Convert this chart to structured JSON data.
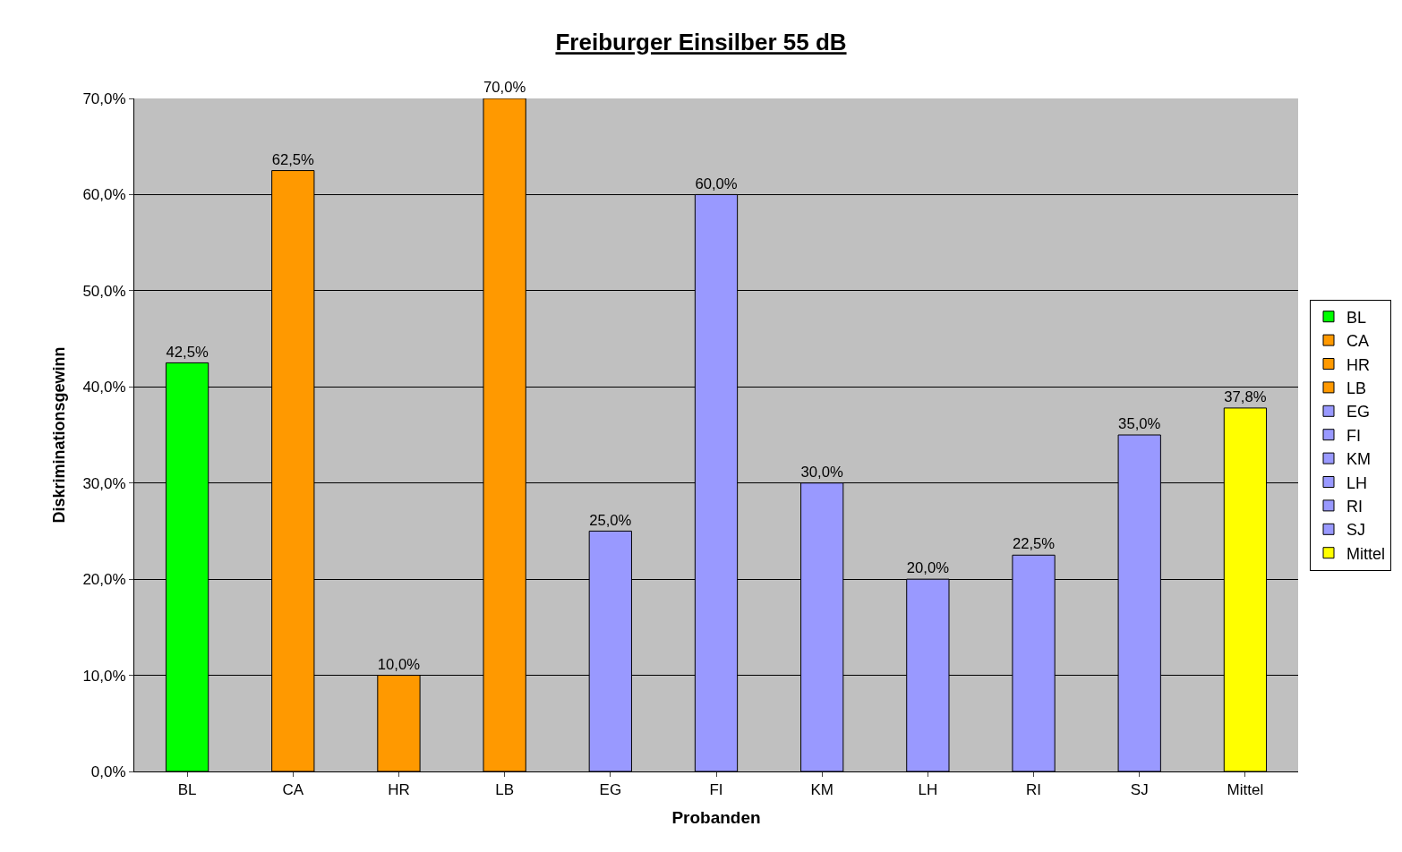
{
  "chart_data": {
    "type": "bar",
    "title": "Freiburger Einsilber 55 dB",
    "xlabel": "Probanden",
    "ylabel": "Diskriminationsgewinn",
    "categories": [
      "BL",
      "CA",
      "HR",
      "LB",
      "EG",
      "FI",
      "KM",
      "LH",
      "RI",
      "SJ",
      "Mittel"
    ],
    "series": [
      {
        "name": "BL",
        "color": "#00ff00",
        "values": [
          42.5,
          null,
          null,
          null,
          null,
          null,
          null,
          null,
          null,
          null,
          null
        ],
        "value_labels": [
          "42,5%",
          null,
          null,
          null,
          null,
          null,
          null,
          null,
          null,
          null,
          null
        ]
      },
      {
        "name": "CA",
        "color": "#ff9900",
        "values": [
          null,
          62.5,
          null,
          null,
          null,
          null,
          null,
          null,
          null,
          null,
          null
        ],
        "value_labels": [
          null,
          "62,5%",
          null,
          null,
          null,
          null,
          null,
          null,
          null,
          null,
          null
        ]
      },
      {
        "name": "HR",
        "color": "#ff9900",
        "values": [
          null,
          null,
          10.0,
          null,
          null,
          null,
          null,
          null,
          null,
          null,
          null
        ],
        "value_labels": [
          null,
          null,
          "10,0%",
          null,
          null,
          null,
          null,
          null,
          null,
          null,
          null
        ]
      },
      {
        "name": "LB",
        "color": "#ff9900",
        "values": [
          null,
          null,
          null,
          70.0,
          null,
          null,
          null,
          null,
          null,
          null,
          null
        ],
        "value_labels": [
          null,
          null,
          null,
          "70,0%",
          null,
          null,
          null,
          null,
          null,
          null,
          null
        ]
      },
      {
        "name": "EG",
        "color": "#9999ff",
        "values": [
          null,
          null,
          null,
          null,
          25.0,
          null,
          null,
          null,
          null,
          null,
          null
        ],
        "value_labels": [
          null,
          null,
          null,
          null,
          "25,0%",
          null,
          null,
          null,
          null,
          null,
          null
        ]
      },
      {
        "name": "FI",
        "color": "#9999ff",
        "values": [
          null,
          null,
          null,
          null,
          null,
          60.0,
          null,
          null,
          null,
          null,
          null
        ],
        "value_labels": [
          null,
          null,
          null,
          null,
          null,
          "60,0%",
          null,
          null,
          null,
          null,
          null
        ]
      },
      {
        "name": "KM",
        "color": "#9999ff",
        "values": [
          null,
          null,
          null,
          null,
          null,
          null,
          30.0,
          null,
          null,
          null,
          null
        ],
        "value_labels": [
          null,
          null,
          null,
          null,
          null,
          null,
          "30,0%",
          null,
          null,
          null,
          null
        ]
      },
      {
        "name": "LH",
        "color": "#9999ff",
        "values": [
          null,
          null,
          null,
          null,
          null,
          null,
          null,
          20.0,
          null,
          null,
          null
        ],
        "value_labels": [
          null,
          null,
          null,
          null,
          null,
          null,
          null,
          "20,0%",
          null,
          null,
          null
        ]
      },
      {
        "name": "RI",
        "color": "#9999ff",
        "values": [
          null,
          null,
          null,
          null,
          null,
          null,
          null,
          null,
          22.5,
          null,
          null
        ],
        "value_labels": [
          null,
          null,
          null,
          null,
          null,
          null,
          null,
          null,
          "22,5%",
          null,
          null
        ]
      },
      {
        "name": "SJ",
        "color": "#9999ff",
        "values": [
          null,
          null,
          null,
          null,
          null,
          null,
          null,
          null,
          null,
          35.0,
          null
        ],
        "value_labels": [
          null,
          null,
          null,
          null,
          null,
          null,
          null,
          null,
          null,
          "35,0%",
          null
        ]
      },
      {
        "name": "Mittel",
        "color": "#ffff00",
        "values": [
          null,
          null,
          null,
          null,
          null,
          null,
          null,
          null,
          null,
          null,
          37.8
        ],
        "value_labels": [
          null,
          null,
          null,
          null,
          null,
          null,
          null,
          null,
          null,
          null,
          "37,8%"
        ]
      }
    ],
    "ylim": [
      0,
      70
    ],
    "yticks": [
      {
        "value": 0,
        "label": "0,0%"
      },
      {
        "value": 10,
        "label": "10,0%"
      },
      {
        "value": 20,
        "label": "20,0%"
      },
      {
        "value": 30,
        "label": "30,0%"
      },
      {
        "value": 40,
        "label": "40,0%"
      },
      {
        "value": 50,
        "label": "50,0%"
      },
      {
        "value": 60,
        "label": "60,0%"
      },
      {
        "value": 70,
        "label": "70,0%"
      }
    ],
    "grid": "y",
    "legend": "right"
  }
}
